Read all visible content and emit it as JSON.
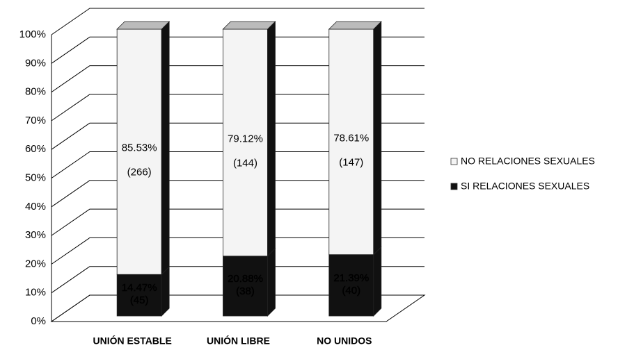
{
  "chart_data": {
    "type": "stacked_bar_3d",
    "categories": [
      "UNIÓN ESTABLE",
      "UNIÓN LIBRE",
      "NO UNIDOS"
    ],
    "series": [
      {
        "name": "SI RELACIONES SEXUALES",
        "color": "#111111",
        "values": [
          14.47,
          20.88,
          21.39
        ],
        "value_labels": [
          "14.47%",
          "20.88%",
          "21.39%"
        ],
        "count_labels": [
          "(45)",
          "(38)",
          "(40)"
        ]
      },
      {
        "name": "NO RELACIONES SEXUALES",
        "color": "#f4f4f4",
        "values": [
          85.53,
          79.12,
          78.61
        ],
        "value_labels": [
          "85.53%",
          "79.12%",
          "78.61%"
        ],
        "count_labels": [
          "(266)",
          "(144)",
          "(147)"
        ]
      }
    ],
    "ylim": [
      0,
      100
    ],
    "yticks": [
      {
        "value": 0,
        "label": "0%"
      },
      {
        "value": 10,
        "label": "10%"
      },
      {
        "value": 20,
        "label": "20%"
      },
      {
        "value": 30,
        "label": "30%"
      },
      {
        "value": 40,
        "label": "40%"
      },
      {
        "value": 50,
        "label": "50%"
      },
      {
        "value": 60,
        "label": "60%"
      },
      {
        "value": 70,
        "label": "70%"
      },
      {
        "value": 80,
        "label": "80%"
      },
      {
        "value": 90,
        "label": "90%"
      },
      {
        "value": 100,
        "label": "100%"
      }
    ],
    "grid": true,
    "legend": "right"
  }
}
